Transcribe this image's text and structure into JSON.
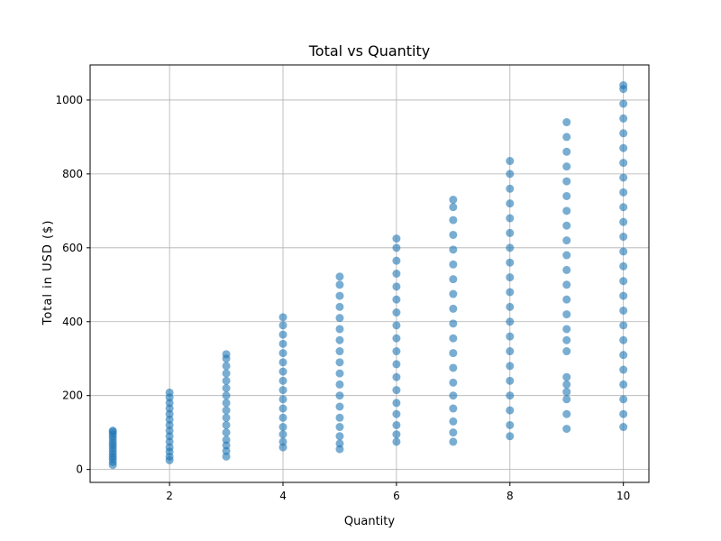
{
  "chart_data": {
    "type": "scatter",
    "title": "Total vs Quantity",
    "xlabel": "Quantity",
    "ylabel": "Total in USD ($)",
    "xlim": [
      0.6,
      10.45
    ],
    "ylim": [
      -35,
      1095
    ],
    "xticks": [
      2,
      4,
      6,
      8,
      10
    ],
    "yticks": [
      0,
      200,
      400,
      600,
      800,
      1000
    ],
    "grid": true,
    "legend": "none",
    "color": "#1f77b4",
    "series": [
      {
        "points_by_quantity": [
          {
            "x": 1,
            "y": [
              12,
              20,
              28,
              35,
              42,
              50,
              58,
              65,
              72,
              80,
              88,
              95,
              102,
              105
            ]
          },
          {
            "x": 2,
            "y": [
              25,
              35,
              48,
              60,
              75,
              90,
              105,
              120,
              135,
              150,
              165,
              180,
              195,
              208
            ]
          },
          {
            "x": 3,
            "y": [
              35,
              50,
              65,
              80,
              100,
              120,
              140,
              160,
              180,
              200,
              220,
              240,
              260,
              280,
              300,
              312
            ]
          },
          {
            "x": 4,
            "y": [
              60,
              75,
              95,
              115,
              140,
              165,
              190,
              215,
              240,
              265,
              290,
              315,
              340,
              365,
              390,
              412
            ]
          },
          {
            "x": 5,
            "y": [
              55,
              70,
              90,
              115,
              140,
              170,
              200,
              230,
              260,
              290,
              320,
              350,
              380,
              410,
              440,
              470,
              500,
              522
            ]
          },
          {
            "x": 6,
            "y": [
              75,
              95,
              120,
              150,
              180,
              215,
              250,
              285,
              320,
              355,
              390,
              425,
              460,
              495,
              530,
              565,
              600,
              625
            ]
          },
          {
            "x": 7,
            "y": [
              75,
              100,
              130,
              165,
              200,
              235,
              275,
              315,
              355,
              395,
              435,
              475,
              515,
              555,
              595,
              635,
              675,
              710,
              730
            ]
          },
          {
            "x": 8,
            "y": [
              90,
              120,
              160,
              200,
              240,
              280,
              320,
              360,
              400,
              440,
              480,
              520,
              560,
              600,
              640,
              680,
              720,
              760,
              800,
              835
            ]
          },
          {
            "x": 9,
            "y": [
              110,
              150,
              190,
              210,
              230,
              250,
              320,
              350,
              380,
              420,
              460,
              500,
              540,
              580,
              620,
              660,
              700,
              740,
              780,
              820,
              860,
              900,
              940
            ]
          },
          {
            "x": 10,
            "y": [
              115,
              150,
              190,
              230,
              270,
              310,
              350,
              390,
              430,
              470,
              510,
              550,
              590,
              630,
              670,
              710,
              750,
              790,
              830,
              870,
              910,
              950,
              990,
              1030,
              1040
            ]
          }
        ]
      }
    ]
  }
}
